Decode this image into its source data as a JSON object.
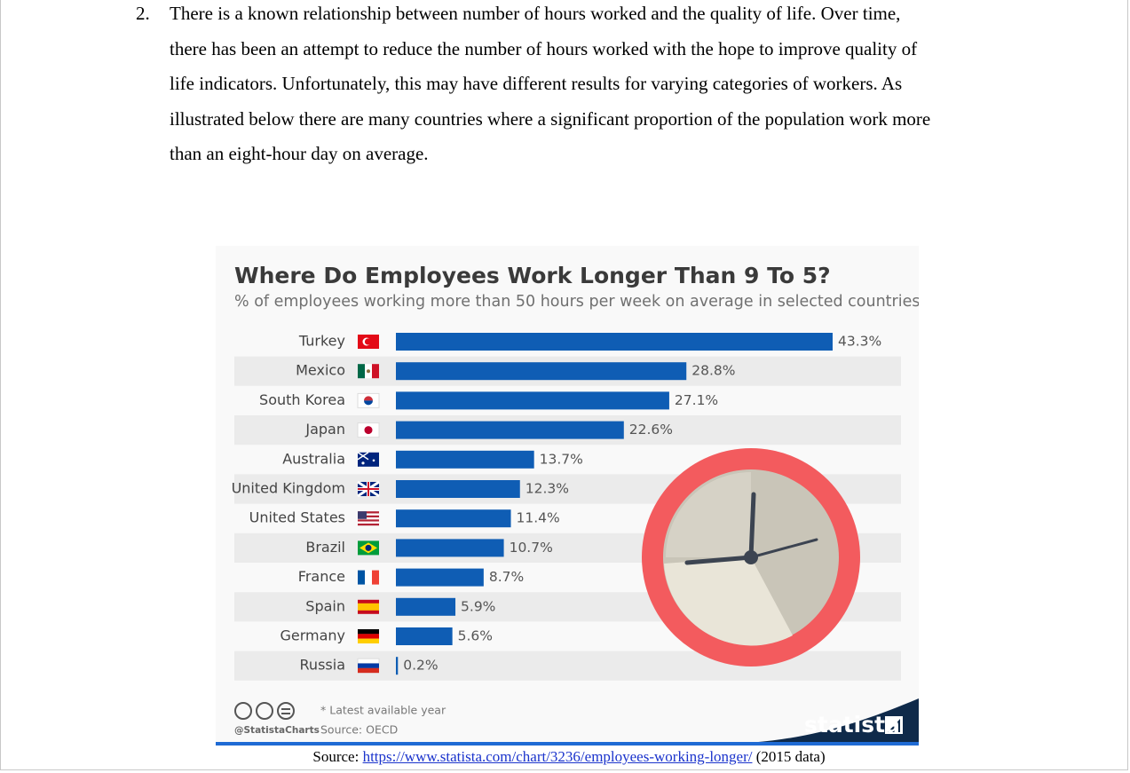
{
  "document": {
    "item_number": "2.",
    "paragraph_lines": [
      "There is a known relationship between number of hours worked and the quality of life.  Over time,",
      "there has been an attempt to reduce the number of hours worked with the hope to improve quality of",
      "life indicators.  Unfortunately, this may have different results for varying categories of workers.  As",
      "illustrated below there are many countries where a significant proportion of the population work more",
      "than an eight-hour day on average."
    ],
    "source_prefix": "Source:",
    "source_link": "https://www.statista.com/chart/3236/employees-working-longer/",
    "source_suffix": "(2015 data)"
  },
  "chart_data": {
    "type": "bar",
    "orientation": "horizontal",
    "title": "Where Do Employees Work Longer Than 9 To 5?",
    "subtitle": "% of employees working more than 50 hours per week on average in selected countries",
    "subtitle_marker": "*",
    "categories": [
      "Turkey",
      "Mexico",
      "South Korea",
      "Japan",
      "Australia",
      "United Kingdom",
      "United States",
      "Brazil",
      "France",
      "Spain",
      "Germany",
      "Russia"
    ],
    "values": [
      43.3,
      28.8,
      27.1,
      22.6,
      13.7,
      12.3,
      11.4,
      10.7,
      8.7,
      5.9,
      5.6,
      0.2
    ],
    "value_labels": [
      "43.3%",
      "28.8%",
      "27.1%",
      "22.6%",
      "13.7%",
      "12.3%",
      "11.4%",
      "10.7%",
      "8.7%",
      "5.9%",
      "5.6%",
      "0.2%"
    ],
    "color": "#0f5db4",
    "footnote": "* Latest available year",
    "handle": "@StatistaCharts",
    "source": "Source: OECD",
    "brand": "statista"
  }
}
